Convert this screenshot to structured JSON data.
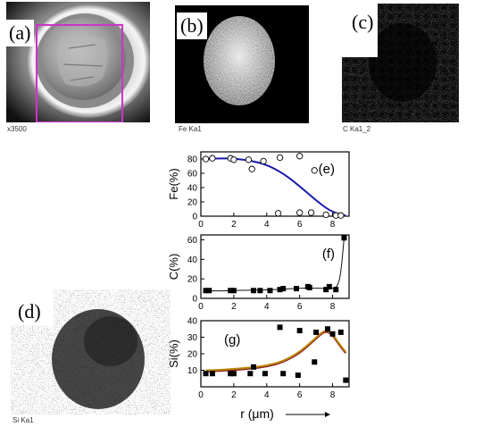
{
  "images": {
    "a": {
      "label": "(a)",
      "caption": "x3500"
    },
    "b": {
      "label": "(b)",
      "caption": "Fe Ka1"
    },
    "c": {
      "label": "(c)",
      "caption": "C Ka1_2"
    },
    "d": {
      "label": "(d)",
      "caption": "Si Ka1"
    }
  },
  "colors": {
    "fe_fit": "#1a1aa8",
    "si_fit": "#b8860b",
    "si_fit_shadow": "#8b1a1a",
    "frame": "#cc33cc"
  },
  "chart_data": [
    {
      "type": "scatter",
      "panel_label": "(e)",
      "ylabel": "Fe(%)",
      "xlim": [
        0,
        9
      ],
      "ylim": [
        0,
        90
      ],
      "xticks": [
        0,
        2,
        4,
        6,
        8
      ],
      "yticks": [
        0,
        20,
        40,
        60,
        80
      ],
      "marker": "open-circle",
      "points": [
        [
          0.3,
          80
        ],
        [
          0.7,
          81
        ],
        [
          1.8,
          81
        ],
        [
          2.0,
          79
        ],
        [
          2.9,
          79
        ],
        [
          3.1,
          66
        ],
        [
          3.8,
          77
        ],
        [
          4.7,
          4
        ],
        [
          4.8,
          82
        ],
        [
          6.0,
          5
        ],
        [
          6.0,
          84
        ],
        [
          6.7,
          5
        ],
        [
          6.9,
          64
        ],
        [
          7.6,
          2
        ],
        [
          8.2,
          1
        ],
        [
          8.5,
          1
        ]
      ],
      "fit": [
        [
          0.3,
          80
        ],
        [
          1,
          81
        ],
        [
          2,
          80.5
        ],
        [
          3,
          78
        ],
        [
          4,
          72
        ],
        [
          5,
          60
        ],
        [
          6,
          42
        ],
        [
          7,
          22
        ],
        [
          7.8,
          8
        ],
        [
          8.5,
          2
        ],
        [
          8.8,
          1
        ]
      ]
    },
    {
      "type": "line",
      "panel_label": "(f)",
      "ylabel": "C(%)",
      "xlim": [
        0,
        9
      ],
      "ylim": [
        0,
        65
      ],
      "xticks": [
        0,
        2,
        4,
        6,
        8
      ],
      "yticks": [
        0,
        20,
        40,
        60
      ],
      "marker": "filled-square",
      "points": [
        [
          0.3,
          8
        ],
        [
          0.5,
          8
        ],
        [
          1.8,
          8
        ],
        [
          2.0,
          8
        ],
        [
          3.2,
          8
        ],
        [
          3.6,
          8
        ],
        [
          4.2,
          8
        ],
        [
          4.8,
          9
        ],
        [
          5.0,
          10
        ],
        [
          5.8,
          10
        ],
        [
          6.5,
          12
        ],
        [
          6.6,
          11
        ],
        [
          7.6,
          9
        ],
        [
          7.8,
          12
        ],
        [
          8.2,
          9
        ],
        [
          8.7,
          62
        ]
      ],
      "fit": [
        [
          0.3,
          8
        ],
        [
          1,
          7.5
        ],
        [
          2,
          8
        ],
        [
          3,
          8.5
        ],
        [
          4,
          8.5
        ],
        [
          5,
          9.5
        ],
        [
          6,
          10.5
        ],
        [
          7,
          10.5
        ],
        [
          7.6,
          10
        ],
        [
          8.0,
          10
        ],
        [
          8.3,
          12
        ],
        [
          8.5,
          25
        ],
        [
          8.7,
          62
        ]
      ]
    },
    {
      "type": "scatter",
      "panel_label": "(g)",
      "ylabel": "Si(%)",
      "xlabel": "r (μm)",
      "xlim": [
        0,
        9
      ],
      "ylim": [
        0,
        40
      ],
      "xticks": [
        0,
        2,
        4,
        6,
        8
      ],
      "yticks": [
        10,
        20,
        30,
        40
      ],
      "marker": "filled-square",
      "points": [
        [
          0.3,
          8
        ],
        [
          0.7,
          8
        ],
        [
          1.8,
          8
        ],
        [
          2.0,
          8
        ],
        [
          3.0,
          8
        ],
        [
          3.2,
          12
        ],
        [
          3.9,
          8
        ],
        [
          4.8,
          36
        ],
        [
          5.0,
          8
        ],
        [
          5.9,
          7
        ],
        [
          6.0,
          34
        ],
        [
          6.9,
          15
        ],
        [
          7.0,
          33
        ],
        [
          7.7,
          35
        ],
        [
          8.0,
          32
        ],
        [
          8.5,
          33
        ],
        [
          8.8,
          4
        ]
      ],
      "fit": [
        [
          0.3,
          10
        ],
        [
          1,
          10.2
        ],
        [
          2,
          10.8
        ],
        [
          3,
          11.6
        ],
        [
          4,
          12.8
        ],
        [
          5,
          15.5
        ],
        [
          6,
          21
        ],
        [
          6.8,
          28
        ],
        [
          7.4,
          33.5
        ],
        [
          7.7,
          34
        ],
        [
          8.0,
          32
        ],
        [
          8.4,
          26
        ],
        [
          8.8,
          21
        ]
      ]
    }
  ]
}
